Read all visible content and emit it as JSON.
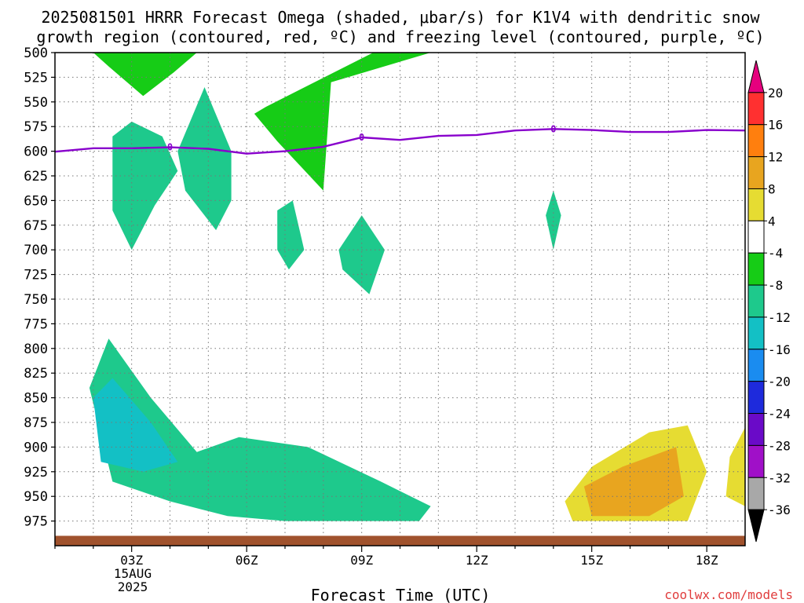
{
  "chart_data": {
    "type": "heatmap",
    "title_line1": "2025081501 HRRR Forecast Omega (shaded, μbar/s) for K1V4 with dendritic snow",
    "title_line2": "growth region (contoured, red, ºC) and freezing level (contoured, purple, ºC)",
    "xlabel": "Forecast Time (UTC)",
    "date_label": "15AUG",
    "year_label": "2025",
    "credit": "coolwx.com/models",
    "x_unit": "forecast hour",
    "xlim": [
      1,
      19
    ],
    "x_ticks": [
      {
        "x": 3,
        "label": "03Z"
      },
      {
        "x": 6,
        "label": "06Z"
      },
      {
        "x": 9,
        "label": "09Z"
      },
      {
        "x": 12,
        "label": "12Z"
      },
      {
        "x": 15,
        "label": "15Z"
      },
      {
        "x": 18,
        "label": "18Z"
      }
    ],
    "y_unit": "hPa",
    "ylim": [
      500,
      1000
    ],
    "y_levels": [
      500,
      525,
      550,
      575,
      600,
      625,
      650,
      675,
      700,
      725,
      750,
      775,
      800,
      825,
      850,
      875,
      900,
      925,
      950,
      975
    ],
    "grid": true,
    "colorbar": {
      "ticks": [
        "20",
        "16",
        "12",
        "8",
        "4",
        "-4",
        "-8",
        "-12",
        "-16",
        "-20",
        "-24",
        "-28",
        "-32",
        "-36"
      ],
      "bins": [
        {
          "range": "> 20",
          "color": "#e6007e"
        },
        {
          "range": "16 to 20",
          "color": "#ff3030"
        },
        {
          "range": "12 to 16",
          "color": "#ff7f0e"
        },
        {
          "range": "8 to 12",
          "color": "#e8a51f"
        },
        {
          "range": "4 to 8",
          "color": "#e6dc32"
        },
        {
          "range": "-4 to 4",
          "color": "#ffffff"
        },
        {
          "range": "-8 to -4",
          "color": "#16cc16"
        },
        {
          "range": "-12 to -8",
          "color": "#1ec98c"
        },
        {
          "range": "-16 to -12",
          "color": "#13c0c5"
        },
        {
          "range": "-20 to -16",
          "color": "#1a8cf0"
        },
        {
          "range": "-24 to -20",
          "color": "#1e2adc"
        },
        {
          "range": "-28 to -24",
          "color": "#6a0ac8"
        },
        {
          "range": "-32 to -28",
          "color": "#a010c8"
        },
        {
          "range": "-36 to -32",
          "color": "#a8a8a8"
        },
        {
          "range": "< -36",
          "color": "#000000"
        }
      ]
    },
    "shaded_regions": [
      {
        "name": "omega -4 to -8 upper",
        "bin": "-8 to -4",
        "points": [
          [
            2.0,
            500
          ],
          [
            2.4,
            514
          ],
          [
            3.3,
            544
          ],
          [
            4.1,
            520
          ],
          [
            4.7,
            500
          ],
          [
            10.8,
            500
          ],
          [
            10.8,
            500
          ],
          [
            8.2,
            530
          ],
          [
            8.0,
            640
          ],
          [
            6.8,
            590
          ],
          [
            6.2,
            562
          ],
          [
            6.5,
            555
          ],
          [
            9.3,
            500
          ]
        ]
      },
      {
        "name": "omega -8 to -12 upper left",
        "bin": "-12 to -8",
        "points": [
          [
            2.5,
            585
          ],
          [
            3.0,
            570
          ],
          [
            3.8,
            585
          ],
          [
            4.2,
            620
          ],
          [
            3.6,
            655
          ],
          [
            3.0,
            700
          ],
          [
            2.5,
            660
          ]
        ]
      },
      {
        "name": "omega -8 to -12 upper mid",
        "bin": "-12 to -8",
        "points": [
          [
            4.2,
            600
          ],
          [
            4.9,
            535
          ],
          [
            5.6,
            600
          ],
          [
            5.6,
            650
          ],
          [
            5.2,
            680
          ],
          [
            4.4,
            640
          ]
        ]
      },
      {
        "name": "omega -8 to -12 small 07Z",
        "bin": "-12 to -8",
        "points": [
          [
            6.8,
            660
          ],
          [
            7.2,
            650
          ],
          [
            7.5,
            700
          ],
          [
            7.1,
            720
          ],
          [
            6.8,
            700
          ]
        ]
      },
      {
        "name": "omega -8 to -12 small 09Z",
        "bin": "-12 to -8",
        "points": [
          [
            8.4,
            700
          ],
          [
            9.0,
            665
          ],
          [
            9.6,
            700
          ],
          [
            9.2,
            745
          ],
          [
            8.5,
            720
          ]
        ]
      },
      {
        "name": "omega -8 to -12 small 14Z",
        "bin": "-12 to -8",
        "points": [
          [
            13.8,
            665
          ],
          [
            14.0,
            640
          ],
          [
            14.2,
            665
          ],
          [
            14.0,
            700
          ]
        ]
      },
      {
        "name": "omega -8 to -12 lower",
        "bin": "-12 to -8",
        "points": [
          [
            1.9,
            840
          ],
          [
            2.4,
            790
          ],
          [
            3.5,
            850
          ],
          [
            4.7,
            905
          ],
          [
            5.8,
            890
          ],
          [
            7.6,
            900
          ],
          [
            9.5,
            935
          ],
          [
            10.8,
            960
          ],
          [
            10.5,
            975
          ],
          [
            7.0,
            975
          ],
          [
            5.5,
            970
          ],
          [
            4.0,
            955
          ],
          [
            2.5,
            935
          ]
        ]
      },
      {
        "name": "omega -12 to -16 lower",
        "bin": "-16 to -12",
        "points": [
          [
            2.0,
            850
          ],
          [
            2.5,
            830
          ],
          [
            3.5,
            875
          ],
          [
            4.2,
            915
          ],
          [
            3.3,
            925
          ],
          [
            2.2,
            915
          ]
        ]
      },
      {
        "name": "omega 4 to 8",
        "bin": "4 to 8",
        "points": [
          [
            14.3,
            955
          ],
          [
            15.0,
            920
          ],
          [
            16.5,
            885
          ],
          [
            17.5,
            878
          ],
          [
            18.0,
            925
          ],
          [
            17.5,
            975
          ],
          [
            14.5,
            975
          ]
        ]
      },
      {
        "name": "omega 8 to 12",
        "bin": "8 to 12",
        "points": [
          [
            14.8,
            940
          ],
          [
            15.8,
            920
          ],
          [
            17.2,
            900
          ],
          [
            17.4,
            950
          ],
          [
            16.5,
            970
          ],
          [
            15.0,
            970
          ]
        ]
      },
      {
        "name": "omega 4 to 8 right edge",
        "bin": "4 to 8",
        "points": [
          [
            19.0,
            880
          ],
          [
            18.6,
            910
          ],
          [
            18.5,
            950
          ],
          [
            19.0,
            960
          ]
        ]
      }
    ],
    "freezing_level": {
      "name": "freezing level",
      "color": "#8800cc",
      "label": "0",
      "x": [
        1.0,
        2.0,
        3.0,
        4.0,
        5.0,
        6.0,
        7.0,
        8.0,
        9.0,
        10.0,
        11.0,
        12.0,
        13.0,
        14.0,
        15.0,
        16.0,
        17.0,
        18.0,
        19.0
      ],
      "y": [
        600.5,
        597.0,
        597.0,
        596.0,
        597.5,
        602.5,
        600.0,
        595.5,
        586.0,
        588.5,
        584.5,
        583.5,
        579.0,
        577.5,
        578.5,
        580.5,
        580.5,
        578.5,
        579.0
      ],
      "label_x": [
        4.0,
        9.0,
        14.0
      ]
    },
    "ground_band": {
      "color": "#a0522d",
      "y": [
        990,
        1000
      ]
    }
  }
}
